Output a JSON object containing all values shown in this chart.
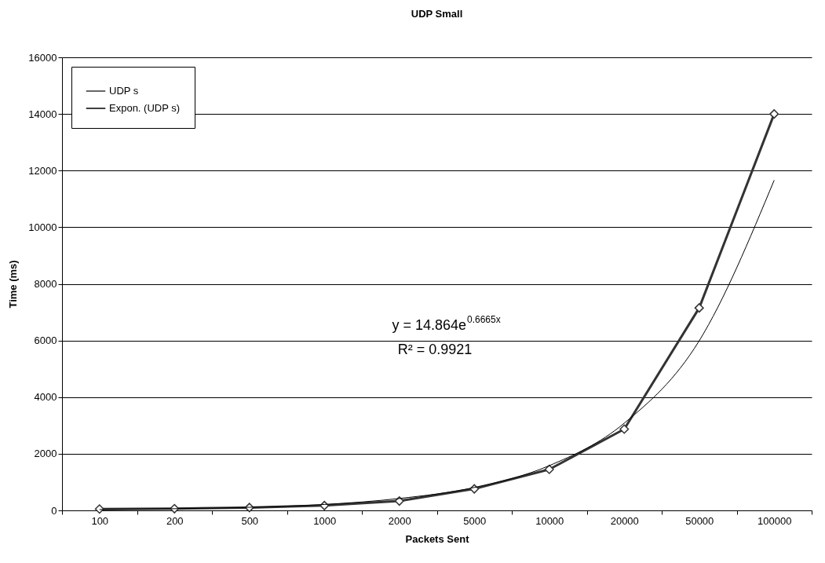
{
  "chart_data": {
    "type": "line",
    "title": "UDP Small",
    "xlabel": "Packets Sent",
    "ylabel": "Time (ms)",
    "categories": [
      "100",
      "200",
      "500",
      "1000",
      "2000",
      "5000",
      "10000",
      "20000",
      "50000",
      "100000"
    ],
    "series": [
      {
        "name": "UDP s",
        "color": "#333333",
        "marker": "diamond",
        "values": [
          50,
          60,
          100,
          170,
          330,
          760,
          1450,
          2870,
          7150,
          14000
        ]
      },
      {
        "name": "Expon. (UDP s)",
        "color": "#000000",
        "marker": "none",
        "values": [
          30,
          60,
          110,
          210,
          420,
          810,
          1580,
          3080,
          5990,
          11660
        ]
      }
    ],
    "ylim": [
      0,
      16000
    ],
    "yticks": [
      0,
      2000,
      4000,
      6000,
      8000,
      10000,
      12000,
      14000,
      16000
    ],
    "grid": "y",
    "legend": "top left",
    "annotations": [
      "y = 14.864e$^{0.6665x}$",
      "R² = 0.9921"
    ]
  }
}
